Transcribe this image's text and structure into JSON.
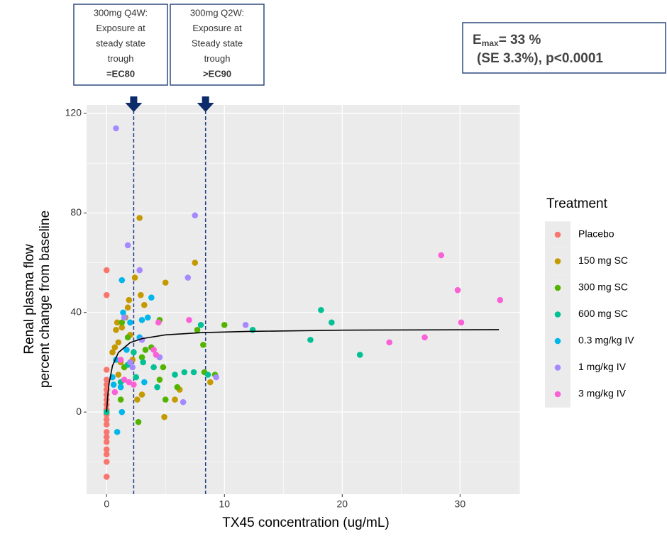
{
  "chart_data": {
    "type": "scatter",
    "xlabel": "TX45 concentration (ug/mL)",
    "ylabel": [
      "Renal plasma flow",
      "percent change from baseline"
    ],
    "xlim": [
      -1.7,
      35.1
    ],
    "ylim": [
      -33,
      123.4
    ],
    "xticks": [
      0,
      10,
      20,
      30
    ],
    "yticks": [
      0,
      40,
      80,
      120
    ],
    "minor_xticks": [
      5,
      15,
      25,
      35
    ],
    "minor_yticks": [
      -20,
      20,
      60,
      100
    ],
    "grid": true,
    "legend_position": "right",
    "legend_title": "Treatment",
    "series": [
      {
        "name": "Placebo",
        "color": "#F8766D",
        "x": [
          0,
          0,
          0,
          0,
          0,
          0,
          0,
          0,
          0,
          0,
          0,
          0,
          0,
          0,
          0,
          0,
          0,
          0,
          0,
          0
        ],
        "values": [
          57,
          47,
          17,
          13,
          11,
          9,
          7,
          5,
          3,
          1,
          -1,
          -3,
          -5,
          -8,
          -10,
          -12,
          -15,
          -17,
          -20,
          -26
        ]
      },
      {
        "name": "150 mg SC",
        "color": "#C49A00",
        "x": [
          0.5,
          0.7,
          0.8,
          0.9,
          1,
          1.2,
          1.3,
          1.5,
          1.6,
          1.8,
          1.9,
          2,
          2.2,
          2.4,
          2.8,
          2.9,
          3.2,
          3,
          5,
          5.8,
          6.2,
          7.5,
          8.8,
          1,
          2.6,
          4.9
        ],
        "values": [
          24,
          26,
          33,
          36,
          28,
          20,
          34,
          18,
          38,
          42,
          45,
          31,
          21,
          54,
          78,
          47,
          43,
          7,
          52,
          5,
          9,
          60,
          12,
          15,
          5,
          -2
        ]
      },
      {
        "name": "300 mg SC",
        "color": "#53B400",
        "x": [
          1.2,
          1.5,
          2.7,
          3,
          3.3,
          3.8,
          4.5,
          4.8,
          5,
          4.5,
          7.7,
          8.2,
          8.3,
          9.2,
          10,
          1.8,
          1.3,
          6
        ],
        "values": [
          5,
          18,
          -4,
          22,
          25,
          26,
          37,
          18,
          5,
          13,
          33,
          27,
          16,
          15,
          35,
          30,
          36,
          10
        ]
      },
      {
        "name": "600 mg SC",
        "color": "#00C094",
        "x": [
          0,
          1.2,
          1.8,
          2.3,
          3.1,
          4,
          5.8,
          6.6,
          7.4,
          8,
          8.6,
          12.4,
          17.3,
          18.2,
          19.1,
          21.5,
          4.3,
          2.5
        ],
        "values": [
          0,
          12,
          19,
          24,
          20,
          18,
          15,
          16,
          16,
          35,
          15,
          33,
          29,
          41,
          36,
          23,
          10,
          14
        ]
      },
      {
        "name": "0.3 mg/kg IV",
        "color": "#00B6EB",
        "x": [
          0.9,
          1.3,
          1.3,
          1.4,
          1.2,
          0.8,
          2,
          3,
          3.5,
          3.8,
          2.8,
          0.5,
          0.6,
          1.7,
          3.2
        ],
        "values": [
          -8,
          0,
          53,
          40,
          10,
          21,
          36,
          37,
          38,
          46,
          30,
          14,
          11,
          25,
          12
        ]
      },
      {
        "name": "1 mg/kg IV",
        "color": "#A58AFF",
        "x": [
          0.8,
          1.8,
          2.8,
          7.5,
          6.9,
          1.5,
          2,
          4.5,
          6.5,
          11.8,
          9.3,
          2.2,
          3
        ],
        "values": [
          114,
          67,
          57,
          79,
          54,
          38,
          20,
          22,
          4,
          35,
          14,
          18,
          29
        ]
      },
      {
        "name": "3 mg/kg IV",
        "color": "#FB61D7",
        "x": [
          0.7,
          1.5,
          1.9,
          2.3,
          4,
          4.2,
          4.4,
          7,
          24,
          27,
          28.4,
          29.8,
          30.1,
          33.4,
          1.2
        ],
        "values": [
          8,
          13,
          12,
          11,
          25,
          23,
          36,
          37,
          28,
          30,
          63,
          49,
          36,
          45,
          21
        ]
      }
    ],
    "fit_line": {
      "color": "#000000",
      "x": [
        0,
        0.1,
        0.2,
        0.5,
        1,
        2,
        3,
        5,
        8,
        12,
        20,
        33.3
      ],
      "values": [
        0,
        6.7,
        11.2,
        18.6,
        23.9,
        27.9,
        29.5,
        31,
        31.9,
        32.4,
        32.9,
        33.1
      ]
    },
    "vlines": {
      "color": "#1F3C88",
      "x": [
        2.3,
        8.4
      ]
    },
    "annotations": [
      {
        "lines": [
          "300mg Q4W:",
          "Exposure at",
          "steady state",
          "trough",
          "=EC80"
        ]
      },
      {
        "lines": [
          "300mg Q2W:",
          "Exposure at",
          "Steady state",
          "trough",
          ">EC90"
        ]
      }
    ],
    "emax_box": {
      "symbol": "E",
      "subscript": "max",
      "value_text": "= 33 %",
      "second_line": "(SE 3.3%), p<0.0001"
    }
  }
}
